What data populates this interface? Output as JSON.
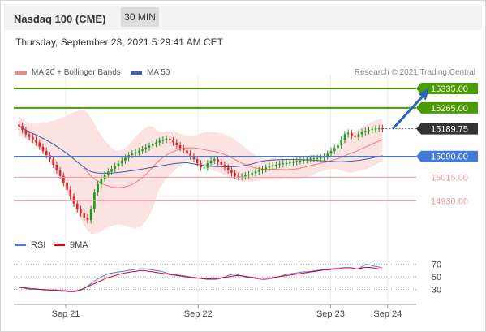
{
  "header": {
    "instrument": "Nasdaq 100 (CME)",
    "timeframe": "30 MIN"
  },
  "datetime": "Thursday, September 23, 2021 5:29:41 AM CET",
  "credit": "Research © 2021 Trading Central",
  "colors": {
    "up": "#1c9b1c",
    "down": "#d9272d",
    "green_level": "#4a9c00",
    "blue_level": "#4479d6",
    "red_level": "#f19aa0",
    "current": "#333333",
    "ma50": "#3d5db3",
    "ma20": "#ef7c7c",
    "band": "#fde2e2",
    "rsi": "#5577dd",
    "rsi_ma": "#e0001b"
  },
  "chart_data": [
    {
      "type": "candlestick",
      "legend": [
        {
          "label": "MA 20 + Bollinger Bands",
          "color": "#f08a8a"
        },
        {
          "label": "MA 50",
          "color": "#3d5db3"
        }
      ],
      "ylim": [
        14820,
        15370
      ],
      "xlim": [
        0,
        155
      ],
      "x_ticks": [
        {
          "x": 20,
          "label": "Sep 21"
        },
        {
          "x": 71,
          "label": "Sep 22"
        },
        {
          "x": 122,
          "label": "Sep 23"
        },
        {
          "x": 144,
          "label": "Sep 24"
        }
      ],
      "levels": [
        {
          "value": 15335.0,
          "label": "15335.00",
          "kind": "resistance"
        },
        {
          "value": 15265.0,
          "label": "15265.00",
          "kind": "resistance"
        },
        {
          "value": 15189.75,
          "label": "15189.75",
          "kind": "current"
        },
        {
          "value": 15090.0,
          "label": "15090.00",
          "kind": "pivot"
        },
        {
          "value": 15015.0,
          "label": "15015.00",
          "kind": "support"
        },
        {
          "value": 14930.0,
          "label": "14930.00",
          "kind": "support"
        }
      ],
      "projection": {
        "from": [
          146,
          15190
        ],
        "to": [
          159,
          15330
        ]
      },
      "closes": [
        15200,
        15185,
        15170,
        15160,
        15150,
        15140,
        15125,
        15110,
        15095,
        15080,
        15060,
        15040,
        15020,
        14995,
        14970,
        14945,
        14920,
        14900,
        14885,
        14870,
        14860,
        14900,
        14960,
        14990,
        15010,
        15025,
        15035,
        15045,
        15055,
        15065,
        15075,
        15085,
        15095,
        15100,
        15105,
        15110,
        15115,
        15122,
        15128,
        15135,
        15140,
        15146,
        15150,
        15154,
        15148,
        15140,
        15130,
        15120,
        15112,
        15100,
        15090,
        15080,
        15065,
        15050,
        15050,
        15065,
        15075,
        15080,
        15070,
        15060,
        15050,
        15040,
        15030,
        15020,
        15015,
        15018,
        15022,
        15025,
        15030,
        15035,
        15040,
        15045,
        15050,
        15055,
        15058,
        15060,
        15063,
        15065,
        15066,
        15068,
        15070,
        15073,
        15075,
        15077,
        15080,
        15082,
        15083,
        15084,
        15085,
        15090,
        15100,
        15110,
        15120,
        15130,
        15150,
        15170,
        15175,
        15165,
        15160,
        15170,
        15178,
        15182,
        15185,
        15188,
        15190,
        15192,
        15189
      ],
      "rsi": {
        "labels": [
          "RSI",
          "9MA"
        ],
        "ylim": [
          15,
          80
        ],
        "ticks": [
          70,
          50,
          30
        ],
        "values": [
          33,
          32,
          31,
          30,
          30,
          30,
          29,
          29,
          28,
          28,
          27,
          27,
          26,
          26,
          27,
          29,
          33,
          38,
          43,
          47,
          51,
          54,
          56,
          57,
          58,
          59,
          60,
          61,
          62,
          63,
          63,
          62,
          61,
          60,
          59,
          57,
          55,
          54,
          53,
          52,
          51,
          50,
          49,
          48,
          47,
          46,
          46,
          46,
          47,
          49,
          52,
          54,
          54,
          52,
          50,
          49,
          48,
          47,
          46,
          46,
          47,
          48,
          50,
          52,
          54,
          55,
          56,
          57,
          58,
          58,
          59,
          60,
          61,
          62,
          63,
          63,
          64,
          64,
          65,
          65,
          64,
          62,
          66,
          70,
          69,
          67,
          66,
          64
        ],
        "ma": [
          34,
          33,
          32,
          31,
          31,
          30,
          30,
          29,
          29,
          29,
          28,
          28,
          27,
          27,
          28,
          30,
          33,
          36,
          39,
          42,
          45,
          48,
          50,
          52,
          54,
          56,
          57,
          58,
          59,
          60,
          60,
          59,
          58,
          57,
          56,
          55,
          54,
          53,
          52,
          51,
          50,
          49,
          48,
          48,
          47,
          47,
          47,
          47,
          48,
          49,
          50,
          51,
          52,
          52,
          51,
          50,
          49,
          48,
          48,
          48,
          48,
          49,
          50,
          51,
          52,
          53,
          54,
          55,
          56,
          57,
          58,
          59,
          60,
          61,
          61,
          62,
          62,
          63,
          63,
          63,
          63,
          63,
          64,
          65,
          65,
          64,
          63,
          62
        ]
      }
    }
  ]
}
